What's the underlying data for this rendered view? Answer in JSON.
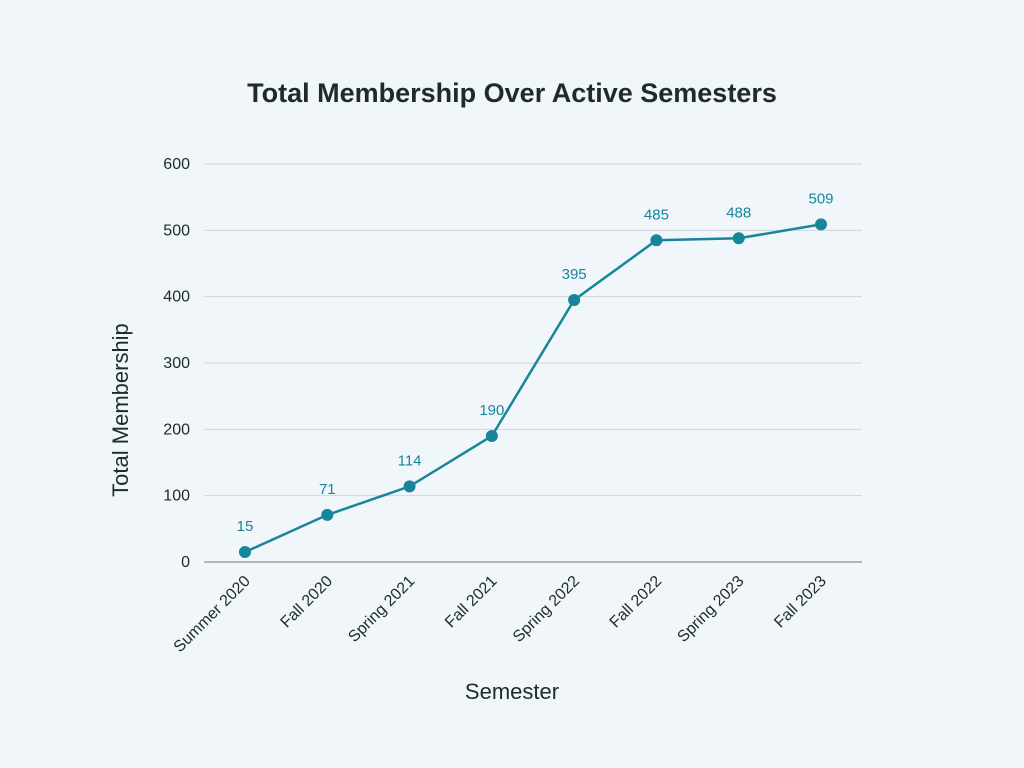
{
  "chart_data": {
    "type": "line",
    "title": "Total Membership Over Active Semesters",
    "xlabel": "Semester",
    "ylabel": "Total Membership",
    "categories": [
      "Summer 2020",
      "Fall 2020",
      "Spring 2021",
      "Fall 2021",
      "Spring 2022",
      "Fall 2022",
      "Spring 2023",
      "Fall 2023"
    ],
    "series": [
      {
        "values": [
          15,
          71,
          114,
          190,
          395,
          485,
          488,
          509
        ]
      }
    ],
    "ylim": [
      0,
      600
    ],
    "yticks": [
      0,
      100,
      200,
      300,
      400,
      500,
      600
    ],
    "grid": true,
    "data_labels": true,
    "legend": "none",
    "colors": {
      "series": "#17869a",
      "background": "#f0f6fa",
      "text": "#1e2a2e"
    }
  }
}
